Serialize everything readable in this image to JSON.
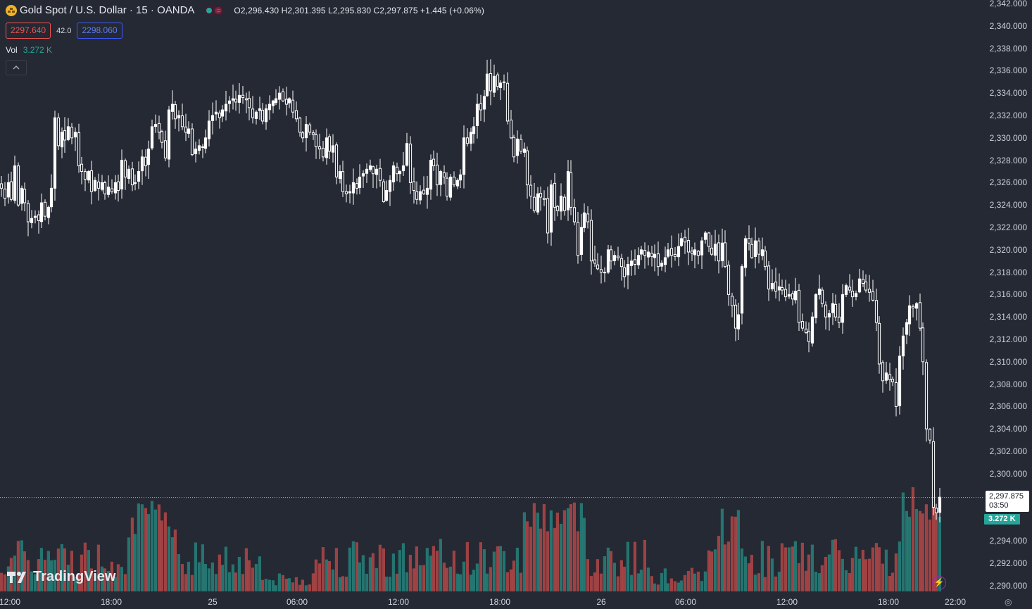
{
  "header": {
    "symbol_title": "Gold Spot / U.S. Dollar · 15 · OANDA",
    "ohlc": "O2,296.430 H2,301.395 L2,295.830 C2,297.875 +1.445 (+0.06%)",
    "sell_price": "2297.640",
    "spread": "42.0",
    "buy_price": "2298.060",
    "vol_label": "Vol",
    "vol_value": "3.272 K",
    "collapse_icon": "chevron-up-icon"
  },
  "axis": {
    "y_ticks": [
      "2,342.000",
      "2,340.000",
      "2,338.000",
      "2,336.000",
      "2,334.000",
      "2,332.000",
      "2,330.000",
      "2,328.000",
      "2,326.000",
      "2,324.000",
      "2,322.000",
      "2,320.000",
      "2,318.000",
      "2,316.000",
      "2,314.000",
      "2,312.000",
      "2,310.000",
      "2,308.000",
      "2,306.000",
      "2,304.000",
      "2,302.000",
      "2,300.000",
      "2,294.000",
      "2,292.000",
      "2,290.000"
    ],
    "x_ticks": [
      "12:00",
      "18:00",
      "25",
      "06:00",
      "12:00",
      "18:00",
      "26",
      "06:00",
      "12:00",
      "18:00",
      "22:00"
    ],
    "last_price": "2,297.875",
    "countdown": "03:50",
    "vol_tag": "3.272 K"
  },
  "branding": {
    "logo_text": "TradingView"
  },
  "colors": {
    "up": "#26a69a",
    "down": "#ef5350",
    "candle": "#ffffff",
    "background": "#252933"
  },
  "chart_data": {
    "type": "candlestick",
    "interval": "15",
    "price_axis": {
      "min": 2290,
      "max": 2342
    },
    "x_labels": [
      "12:00",
      "18:00",
      "25",
      "06:00",
      "12:00",
      "18:00",
      "26",
      "06:00",
      "12:00",
      "18:00",
      "22:00"
    ],
    "close_path": [
      [
        0,
        2325.5
      ],
      [
        5,
        2324.6
      ],
      [
        10,
        2326
      ],
      [
        14,
        2324.5
      ],
      [
        19,
        2327.5
      ],
      [
        24,
        2324
      ],
      [
        29,
        2325.5
      ],
      [
        33,
        2324.2
      ],
      [
        38,
        2322.5
      ],
      [
        43,
        2322.8
      ],
      [
        48,
        2323
      ],
      [
        53,
        2322.6
      ],
      [
        57,
        2324.2
      ],
      [
        62,
        2323
      ],
      [
        67,
        2323.8
      ],
      [
        71,
        2325.5
      ],
      [
        76,
        2331.8
      ],
      [
        81,
        2329.3
      ],
      [
        86,
        2330.5
      ],
      [
        90,
        2329.8
      ],
      [
        95,
        2331
      ],
      [
        100,
        2330
      ],
      [
        105,
        2330.5
      ],
      [
        110,
        2327.5
      ],
      [
        114,
        2327
      ],
      [
        119,
        2326.3
      ],
      [
        124,
        2327
      ],
      [
        128,
        2325.2
      ],
      [
        133,
        2326.2
      ],
      [
        138,
        2325.5
      ],
      [
        143,
        2326
      ],
      [
        147,
        2325
      ],
      [
        152,
        2325.6
      ],
      [
        157,
        2325.2
      ],
      [
        162,
        2326
      ],
      [
        166,
        2325.3
      ],
      [
        171,
        2328
      ],
      [
        176,
        2326.5
      ],
      [
        181,
        2327.2
      ],
      [
        186,
        2325.8
      ],
      [
        190,
        2326
      ],
      [
        195,
        2327
      ],
      [
        200,
        2328.3
      ],
      [
        205,
        2327.5
      ],
      [
        209,
        2329
      ],
      [
        214,
        2331
      ],
      [
        219,
        2331.2
      ],
      [
        224,
        2330.5
      ],
      [
        228,
        2329.6
      ],
      [
        233,
        2328.2
      ],
      [
        238,
        2332.5
      ],
      [
        243,
        2333
      ],
      [
        247,
        2331.7
      ],
      [
        252,
        2332
      ],
      [
        257,
        2331
      ],
      [
        262,
        2330.5
      ],
      [
        266,
        2330.8
      ],
      [
        271,
        2328.5
      ],
      [
        276,
        2329
      ],
      [
        281,
        2329.3
      ],
      [
        286,
        2329.2
      ],
      [
        290,
        2330
      ],
      [
        295,
        2331.5
      ],
      [
        300,
        2332
      ],
      [
        305,
        2332.3
      ],
      [
        310,
        2331.8
      ],
      [
        314,
        2332.5
      ],
      [
        319,
        2333
      ],
      [
        324,
        2333.3
      ],
      [
        329,
        2333.5
      ],
      [
        333,
        2333.2
      ],
      [
        338,
        2333.8
      ],
      [
        343,
        2333.6
      ],
      [
        348,
        2333.4
      ],
      [
        352,
        2332.7
      ],
      [
        357,
        2331.8
      ],
      [
        362,
        2332.3
      ],
      [
        367,
        2332.6
      ],
      [
        371,
        2331.5
      ],
      [
        376,
        2332.6
      ],
      [
        381,
        2333
      ],
      [
        386,
        2333.3
      ],
      [
        390,
        2333.5
      ],
      [
        395,
        2334
      ],
      [
        400,
        2333.3
      ],
      [
        405,
        2333
      ],
      [
        409,
        2333.5
      ],
      [
        414,
        2332.3
      ],
      [
        419,
        2331.7
      ],
      [
        424,
        2330.5
      ],
      [
        428,
        2330
      ],
      [
        433,
        2331.2
      ],
      [
        438,
        2330.5
      ],
      [
        443,
        2330.3
      ],
      [
        447,
        2329.2
      ],
      [
        452,
        2329
      ],
      [
        457,
        2328.3
      ],
      [
        462,
        2330
      ],
      [
        466,
        2328.8
      ],
      [
        471,
        2329.3
      ],
      [
        476,
        2326.5
      ],
      [
        481,
        2327
      ],
      [
        485,
        2325.2
      ],
      [
        490,
        2325
      ],
      [
        495,
        2325.2
      ],
      [
        500,
        2326
      ],
      [
        505,
        2325.5
      ],
      [
        509,
        2326.5
      ],
      [
        514,
        2326.8
      ],
      [
        519,
        2327.2
      ],
      [
        524,
        2327.5
      ],
      [
        528,
        2326.8
      ],
      [
        533,
        2327.2
      ],
      [
        538,
        2326.2
      ],
      [
        543,
        2324.3
      ],
      [
        547,
        2325.3
      ],
      [
        552,
        2326.2
      ],
      [
        557,
        2327.5
      ],
      [
        562,
        2326.8
      ],
      [
        566,
        2327
      ],
      [
        571,
        2327.5
      ],
      [
        576,
        2329.5
      ],
      [
        581,
        2326
      ],
      [
        586,
        2325.3
      ],
      [
        590,
        2324.5
      ],
      [
        595,
        2325.2
      ],
      [
        600,
        2325
      ],
      [
        605,
        2325.5
      ],
      [
        610,
        2328
      ],
      [
        614,
        2327.5
      ],
      [
        619,
        2325.8
      ],
      [
        624,
        2327
      ],
      [
        629,
        2326.5
      ],
      [
        633,
        2324.8
      ],
      [
        638,
        2326.5
      ],
      [
        643,
        2325.8
      ],
      [
        648,
        2326.2
      ],
      [
        652,
        2326.7
      ],
      [
        657,
        2330
      ],
      [
        662,
        2329.5
      ],
      [
        667,
        2330.5
      ],
      [
        671,
        2331
      ],
      [
        676,
        2333
      ],
      [
        681,
        2332.5
      ],
      [
        686,
        2333.7
      ],
      [
        690,
        2335.7
      ],
      [
        695,
        2334.2
      ],
      [
        700,
        2335.5
      ],
      [
        705,
        2334.6
      ],
      [
        709,
        2334.9
      ],
      [
        714,
        2335
      ],
      [
        719,
        2331.5
      ],
      [
        724,
        2330
      ],
      [
        728,
        2328.3
      ],
      [
        733,
        2329.9
      ],
      [
        738,
        2328.8
      ],
      [
        743,
        2329
      ],
      [
        747,
        2325.8
      ],
      [
        752,
        2324.8
      ],
      [
        757,
        2323.5
      ],
      [
        762,
        2325
      ],
      [
        766,
        2324.7
      ],
      [
        771,
        2324.5
      ],
      [
        776,
        2321.5
      ],
      [
        781,
        2325.8
      ],
      [
        786,
        2323.8
      ],
      [
        790,
        2323.5
      ],
      [
        795,
        2324.8
      ],
      [
        800,
        2323.5
      ],
      [
        805,
        2327
      ],
      [
        809,
        2323.8
      ],
      [
        814,
        2322.5
      ],
      [
        819,
        2319.5
      ],
      [
        824,
        2322
      ],
      [
        828,
        2323.3
      ],
      [
        833,
        2322.5
      ],
      [
        838,
        2319
      ],
      [
        843,
        2318.8
      ],
      [
        847,
        2318.3
      ],
      [
        852,
        2318
      ],
      [
        857,
        2318
      ],
      [
        862,
        2320
      ],
      [
        866,
        2319
      ],
      [
        871,
        2319.5
      ],
      [
        876,
        2319.3
      ],
      [
        881,
        2318.5
      ],
      [
        885,
        2317.6
      ],
      [
        890,
        2318.7
      ],
      [
        895,
        2319
      ],
      [
        900,
        2318.7
      ],
      [
        905,
        2319.5
      ],
      [
        909,
        2320
      ],
      [
        914,
        2319.5
      ],
      [
        919,
        2319.8
      ],
      [
        924,
        2319.4
      ],
      [
        928,
        2319.6
      ],
      [
        933,
        2318.5
      ],
      [
        938,
        2318.8
      ],
      [
        943,
        2319.3
      ],
      [
        947,
        2320
      ],
      [
        952,
        2319.5
      ],
      [
        957,
        2319.4
      ],
      [
        962,
        2320.3
      ],
      [
        966,
        2321
      ],
      [
        971,
        2320.7
      ],
      [
        976,
        2319.8
      ],
      [
        981,
        2319.7
      ],
      [
        985,
        2320
      ],
      [
        990,
        2319.5
      ],
      [
        995,
        2320.8
      ],
      [
        1000,
        2321.5
      ],
      [
        1005,
        2320.3
      ],
      [
        1009,
        2319.6
      ],
      [
        1014,
        2320.5
      ],
      [
        1019,
        2319
      ],
      [
        1024,
        2320.6
      ],
      [
        1028,
        2318.5
      ],
      [
        1033,
        2316
      ],
      [
        1038,
        2315
      ],
      [
        1043,
        2313
      ],
      [
        1047,
        2314.2
      ],
      [
        1052,
        2318.5
      ],
      [
        1057,
        2321
      ],
      [
        1062,
        2320.6
      ],
      [
        1066,
        2319.3
      ],
      [
        1071,
        2320.8
      ],
      [
        1076,
        2319.6
      ],
      [
        1081,
        2320
      ],
      [
        1085,
        2318.5
      ],
      [
        1090,
        2316.5
      ],
      [
        1095,
        2317
      ],
      [
        1100,
        2316.3
      ],
      [
        1105,
        2316.7
      ],
      [
        1109,
        2316.4
      ],
      [
        1114,
        2315.8
      ],
      [
        1119,
        2316
      ],
      [
        1124,
        2315.6
      ],
      [
        1128,
        2316.3
      ],
      [
        1133,
        2313.5
      ],
      [
        1138,
        2313
      ],
      [
        1143,
        2312.6
      ],
      [
        1147,
        2311.8
      ],
      [
        1152,
        2314
      ],
      [
        1157,
        2316
      ],
      [
        1162,
        2316.5
      ],
      [
        1166,
        2315.2
      ],
      [
        1171,
        2314
      ],
      [
        1176,
        2314.3
      ],
      [
        1181,
        2315.2
      ],
      [
        1185,
        2314
      ],
      [
        1190,
        2313.5
      ],
      [
        1195,
        2316
      ],
      [
        1200,
        2316.8
      ],
      [
        1205,
        2316.4
      ],
      [
        1209,
        2315.8
      ],
      [
        1214,
        2316.1
      ],
      [
        1219,
        2317.4
      ],
      [
        1224,
        2317
      ],
      [
        1228,
        2316.4
      ],
      [
        1233,
        2316.2
      ],
      [
        1238,
        2315.5
      ],
      [
        1243,
        2313.5
      ],
      [
        1247,
        2309.8
      ],
      [
        1252,
        2308.3
      ],
      [
        1257,
        2309
      ],
      [
        1262,
        2308.4
      ],
      [
        1266,
        2308.2
      ],
      [
        1271,
        2306
      ],
      [
        1276,
        2310.5
      ],
      [
        1281,
        2312.3
      ],
      [
        1286,
        2313.5
      ],
      [
        1290,
        2315
      ],
      [
        1295,
        2314.8
      ],
      [
        1300,
        2315.2
      ],
      [
        1305,
        2313
      ],
      [
        1309,
        2310
      ],
      [
        1314,
        2304
      ],
      [
        1319,
        2303
      ],
      [
        1324,
        2297
      ],
      [
        1328,
        2296.5
      ],
      [
        1333,
        2297.9
      ]
    ],
    "volume_unit": "K",
    "last_volume": 3.272
  }
}
